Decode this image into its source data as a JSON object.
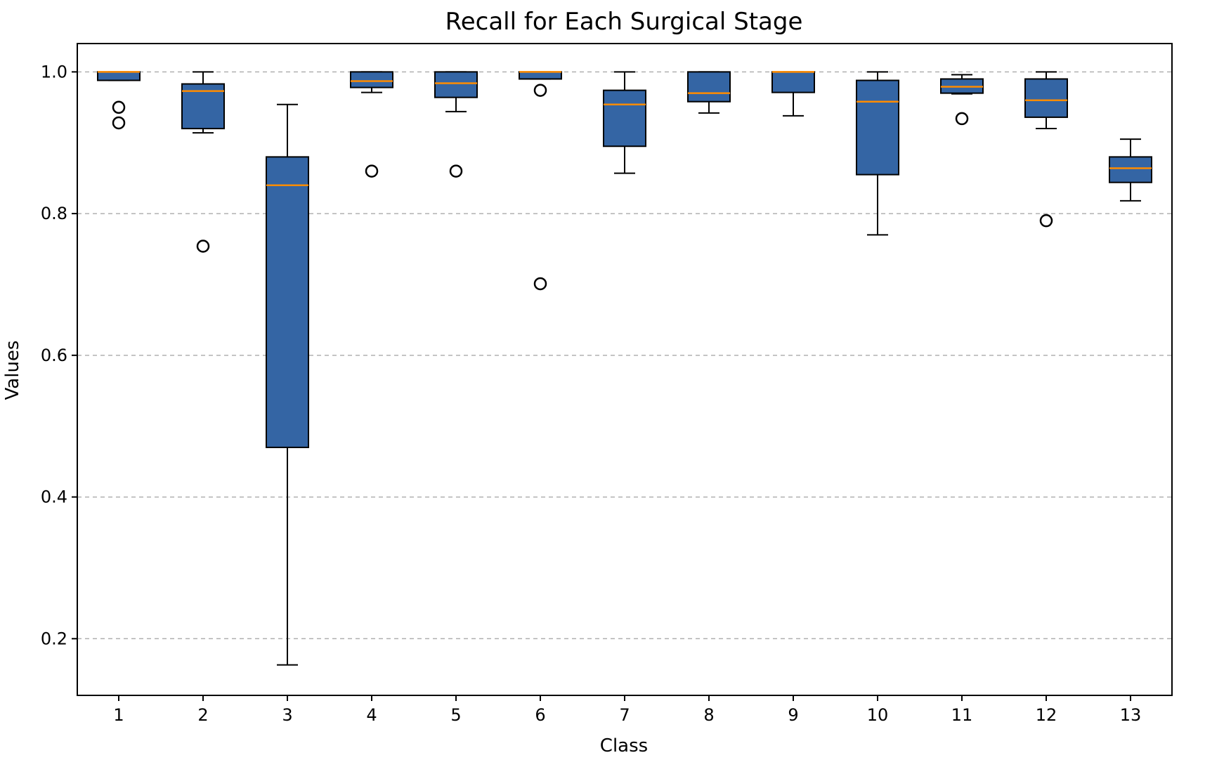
{
  "chart_data": {
    "type": "box",
    "title": "Recall for Each Surgical Stage",
    "xlabel": "Class",
    "ylabel": "Values",
    "ylim": [
      0.12,
      1.04
    ],
    "yticks": [
      0.2,
      0.4,
      0.6,
      0.8,
      1.0
    ],
    "ytick_labels": [
      "0.2",
      "0.4",
      "0.6",
      "0.8",
      "1.0"
    ],
    "grid": "y-dashed",
    "box_color": "#3465a4",
    "median_color": "#ff8c00",
    "categories": [
      "1",
      "2",
      "3",
      "4",
      "5",
      "6",
      "7",
      "8",
      "9",
      "10",
      "11",
      "12",
      "13"
    ],
    "boxes": [
      {
        "label": "1",
        "whislo": 0.988,
        "q1": 0.988,
        "med": 1.0,
        "q3": 1.0,
        "whishi": 1.0,
        "fliers": [
          0.95,
          0.928
        ]
      },
      {
        "label": "2",
        "whislo": 0.914,
        "q1": 0.92,
        "med": 0.973,
        "q3": 0.983,
        "whishi": 1.0,
        "fliers": [
          0.754
        ]
      },
      {
        "label": "3",
        "whislo": 0.163,
        "q1": 0.47,
        "med": 0.84,
        "q3": 0.88,
        "whishi": 0.954,
        "fliers": []
      },
      {
        "label": "4",
        "whislo": 0.971,
        "q1": 0.978,
        "med": 0.987,
        "q3": 1.0,
        "whishi": 1.0,
        "fliers": [
          0.86
        ]
      },
      {
        "label": "5",
        "whislo": 0.944,
        "q1": 0.964,
        "med": 0.984,
        "q3": 1.0,
        "whishi": 1.0,
        "fliers": [
          0.86
        ]
      },
      {
        "label": "6",
        "whislo": 0.99,
        "q1": 0.99,
        "med": 1.0,
        "q3": 1.0,
        "whishi": 1.0,
        "fliers": [
          0.974,
          0.701
        ]
      },
      {
        "label": "7",
        "whislo": 0.857,
        "q1": 0.895,
        "med": 0.954,
        "q3": 0.974,
        "whishi": 1.0,
        "fliers": []
      },
      {
        "label": "8",
        "whislo": 0.942,
        "q1": 0.958,
        "med": 0.97,
        "q3": 1.0,
        "whishi": 1.0,
        "fliers": []
      },
      {
        "label": "9",
        "whislo": 0.938,
        "q1": 0.971,
        "med": 1.0,
        "q3": 1.0,
        "whishi": 1.0,
        "fliers": []
      },
      {
        "label": "10",
        "whislo": 0.77,
        "q1": 0.855,
        "med": 0.958,
        "q3": 0.988,
        "whishi": 1.0,
        "fliers": []
      },
      {
        "label": "11",
        "whislo": 0.969,
        "q1": 0.97,
        "med": 0.979,
        "q3": 0.99,
        "whishi": 0.996,
        "fliers": [
          0.934
        ]
      },
      {
        "label": "12",
        "whislo": 0.92,
        "q1": 0.936,
        "med": 0.96,
        "q3": 0.99,
        "whishi": 1.0,
        "fliers": [
          0.79
        ]
      },
      {
        "label": "13",
        "whislo": 0.818,
        "q1": 0.844,
        "med": 0.864,
        "q3": 0.88,
        "whishi": 0.905,
        "fliers": []
      }
    ]
  }
}
